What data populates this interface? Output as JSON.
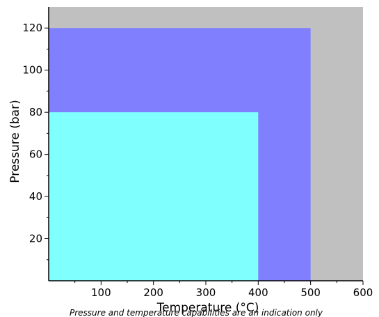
{
  "chart_data": {
    "type": "area",
    "xlabel": "Temperature (°C)",
    "ylabel": "Pressure (bar)",
    "xlim": [
      0,
      600
    ],
    "ylim": [
      0,
      130
    ],
    "x_ticks": [
      100,
      200,
      300,
      400,
      500,
      600
    ],
    "y_ticks": [
      20,
      40,
      60,
      80,
      100,
      120
    ],
    "grid": false,
    "background_color": "#c0c0c0",
    "regions": [
      {
        "x_max": 500,
        "y_max": 120,
        "color": "#8080ff"
      },
      {
        "x_max": 400,
        "y_max": 80,
        "color": "#80ffff"
      }
    ],
    "caption": "Pressure and temperature capabilities are an indication only"
  }
}
